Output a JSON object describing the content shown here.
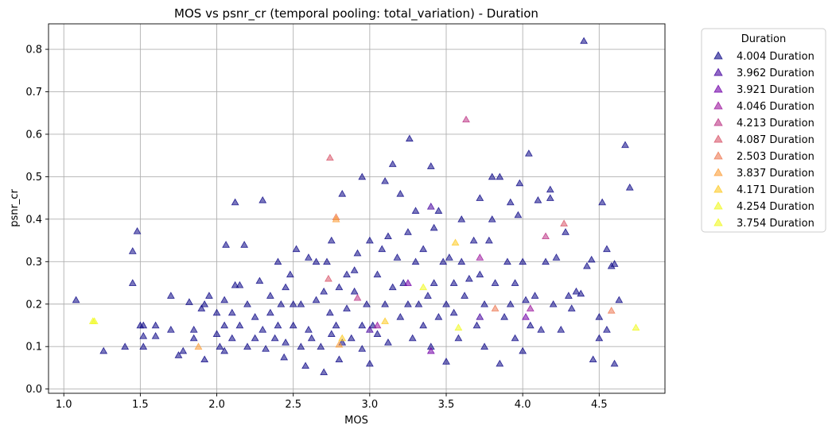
{
  "chart_data": {
    "type": "scatter",
    "title": "MOS vs psnr_cr (temporal pooling: total_variation) - Duration",
    "xlabel": "MOS",
    "ylabel": "psnr_cr",
    "xlim": [
      0.9,
      4.93
    ],
    "ylim": [
      -0.01,
      0.86
    ],
    "xticks": [
      1.0,
      1.5,
      2.0,
      2.5,
      3.0,
      3.5,
      4.0,
      4.5
    ],
    "xtick_labels": [
      "1.0",
      "1.5",
      "2.0",
      "2.5",
      "3.0",
      "3.5",
      "4.0",
      "4.5"
    ],
    "yticks": [
      0.0,
      0.1,
      0.2,
      0.3,
      0.4,
      0.5,
      0.6,
      0.7,
      0.8
    ],
    "ytick_labels": [
      "0.0",
      "0.1",
      "0.2",
      "0.3",
      "0.4",
      "0.5",
      "0.6",
      "0.7",
      "0.8"
    ],
    "grid": true,
    "marker": "triangle",
    "legend": {
      "title": "Duration",
      "placement": "outside-right"
    },
    "series": [
      {
        "name": "4.004 Duration",
        "color": "#0d0887",
        "points": [
          [
            1.08,
            0.21
          ],
          [
            1.26,
            0.09
          ],
          [
            1.4,
            0.1
          ],
          [
            1.45,
            0.325
          ],
          [
            1.45,
            0.25
          ],
          [
            1.48,
            0.372
          ],
          [
            1.5,
            0.15
          ],
          [
            1.52,
            0.15
          ],
          [
            1.52,
            0.125
          ],
          [
            1.52,
            0.1
          ],
          [
            1.6,
            0.15
          ],
          [
            1.6,
            0.125
          ],
          [
            1.7,
            0.14
          ],
          [
            1.7,
            0.22
          ],
          [
            1.75,
            0.08
          ],
          [
            1.78,
            0.09
          ],
          [
            1.82,
            0.205
          ],
          [
            1.85,
            0.12
          ],
          [
            1.85,
            0.14
          ],
          [
            1.9,
            0.19
          ],
          [
            1.92,
            0.07
          ],
          [
            1.92,
            0.2
          ],
          [
            1.95,
            0.22
          ],
          [
            2.0,
            0.13
          ],
          [
            2.0,
            0.18
          ],
          [
            2.02,
            0.1
          ],
          [
            2.05,
            0.09
          ],
          [
            2.05,
            0.15
          ],
          [
            2.05,
            0.21
          ],
          [
            2.06,
            0.34
          ],
          [
            2.1,
            0.12
          ],
          [
            2.1,
            0.18
          ],
          [
            2.12,
            0.245
          ],
          [
            2.12,
            0.44
          ],
          [
            2.15,
            0.15
          ],
          [
            2.15,
            0.245
          ],
          [
            2.18,
            0.34
          ],
          [
            2.2,
            0.1
          ],
          [
            2.2,
            0.2
          ],
          [
            2.25,
            0.12
          ],
          [
            2.25,
            0.17
          ],
          [
            2.28,
            0.255
          ],
          [
            2.3,
            0.445
          ],
          [
            2.3,
            0.14
          ],
          [
            2.32,
            0.095
          ],
          [
            2.35,
            0.22
          ],
          [
            2.35,
            0.18
          ],
          [
            2.38,
            0.12
          ],
          [
            2.4,
            0.3
          ],
          [
            2.4,
            0.15
          ],
          [
            2.42,
            0.2
          ],
          [
            2.44,
            0.075
          ],
          [
            2.45,
            0.24
          ],
          [
            2.45,
            0.11
          ],
          [
            2.48,
            0.27
          ],
          [
            2.5,
            0.15
          ],
          [
            2.5,
            0.2
          ],
          [
            2.52,
            0.33
          ],
          [
            2.55,
            0.1
          ],
          [
            2.55,
            0.2
          ],
          [
            2.58,
            0.055
          ],
          [
            2.6,
            0.31
          ],
          [
            2.6,
            0.14
          ],
          [
            2.62,
            0.12
          ],
          [
            2.65,
            0.3
          ],
          [
            2.65,
            0.21
          ],
          [
            2.68,
            0.1
          ],
          [
            2.7,
            0.04
          ],
          [
            2.7,
            0.23
          ],
          [
            2.72,
            0.3
          ],
          [
            2.74,
            0.18
          ],
          [
            2.75,
            0.13
          ],
          [
            2.75,
            0.35
          ],
          [
            2.78,
            0.15
          ],
          [
            2.8,
            0.24
          ],
          [
            2.8,
            0.07
          ],
          [
            2.82,
            0.46
          ],
          [
            2.82,
            0.11
          ],
          [
            2.85,
            0.27
          ],
          [
            2.85,
            0.19
          ],
          [
            2.88,
            0.12
          ],
          [
            2.9,
            0.28
          ],
          [
            2.9,
            0.23
          ],
          [
            2.92,
            0.32
          ],
          [
            2.95,
            0.5
          ],
          [
            2.95,
            0.15
          ],
          [
            2.95,
            0.095
          ],
          [
            2.98,
            0.2
          ],
          [
            3.0,
            0.35
          ],
          [
            3.0,
            0.06
          ],
          [
            3.02,
            0.15
          ],
          [
            3.05,
            0.27
          ],
          [
            3.05,
            0.13
          ],
          [
            3.08,
            0.33
          ],
          [
            3.1,
            0.2
          ],
          [
            3.1,
            0.49
          ],
          [
            3.12,
            0.36
          ],
          [
            3.12,
            0.11
          ],
          [
            3.15,
            0.53
          ],
          [
            3.15,
            0.24
          ],
          [
            3.18,
            0.31
          ],
          [
            3.2,
            0.46
          ],
          [
            3.2,
            0.17
          ],
          [
            3.22,
            0.25
          ],
          [
            3.25,
            0.37
          ],
          [
            3.25,
            0.2
          ],
          [
            3.26,
            0.59
          ],
          [
            3.28,
            0.12
          ],
          [
            3.3,
            0.42
          ],
          [
            3.3,
            0.3
          ],
          [
            3.32,
            0.2
          ],
          [
            3.35,
            0.33
          ],
          [
            3.35,
            0.15
          ],
          [
            3.38,
            0.22
          ],
          [
            3.4,
            0.525
          ],
          [
            3.4,
            0.1
          ],
          [
            3.42,
            0.38
          ],
          [
            3.42,
            0.25
          ],
          [
            3.45,
            0.17
          ],
          [
            3.45,
            0.42
          ],
          [
            3.48,
            0.3
          ],
          [
            3.5,
            0.2
          ],
          [
            3.5,
            0.065
          ],
          [
            3.52,
            0.31
          ],
          [
            3.55,
            0.18
          ],
          [
            3.55,
            0.25
          ],
          [
            3.58,
            0.12
          ],
          [
            3.6,
            0.4
          ],
          [
            3.6,
            0.3
          ],
          [
            3.62,
            0.22
          ],
          [
            3.65,
            0.26
          ],
          [
            3.68,
            0.35
          ],
          [
            3.7,
            0.15
          ],
          [
            3.72,
            0.27
          ],
          [
            3.72,
            0.45
          ],
          [
            3.75,
            0.1
          ],
          [
            3.75,
            0.2
          ],
          [
            3.78,
            0.35
          ],
          [
            3.8,
            0.5
          ],
          [
            3.8,
            0.4
          ],
          [
            3.82,
            0.25
          ],
          [
            3.85,
            0.06
          ],
          [
            3.85,
            0.5
          ],
          [
            3.88,
            0.17
          ],
          [
            3.9,
            0.3
          ],
          [
            3.92,
            0.44
          ],
          [
            3.92,
            0.2
          ],
          [
            3.95,
            0.12
          ],
          [
            3.95,
            0.25
          ],
          [
            3.97,
            0.41
          ],
          [
            3.98,
            0.485
          ],
          [
            4.0,
            0.09
          ],
          [
            4.0,
            0.3
          ],
          [
            4.02,
            0.21
          ],
          [
            4.04,
            0.555
          ],
          [
            4.05,
            0.15
          ],
          [
            4.08,
            0.22
          ],
          [
            4.1,
            0.445
          ],
          [
            4.12,
            0.14
          ],
          [
            4.15,
            0.3
          ],
          [
            4.18,
            0.47
          ],
          [
            4.18,
            0.45
          ],
          [
            4.2,
            0.2
          ],
          [
            4.22,
            0.31
          ],
          [
            4.25,
            0.14
          ],
          [
            4.28,
            0.37
          ],
          [
            4.3,
            0.22
          ],
          [
            4.32,
            0.19
          ],
          [
            4.35,
            0.23
          ],
          [
            4.38,
            0.225
          ],
          [
            4.4,
            0.82
          ],
          [
            4.42,
            0.29
          ],
          [
            4.45,
            0.305
          ],
          [
            4.46,
            0.07
          ],
          [
            4.5,
            0.17
          ],
          [
            4.5,
            0.12
          ],
          [
            4.52,
            0.44
          ],
          [
            4.55,
            0.33
          ],
          [
            4.55,
            0.14
          ],
          [
            4.58,
            0.29
          ],
          [
            4.6,
            0.06
          ],
          [
            4.6,
            0.295
          ],
          [
            4.63,
            0.21
          ],
          [
            4.67,
            0.575
          ],
          [
            4.7,
            0.475
          ]
        ]
      },
      {
        "name": "3.962 Duration",
        "color": "#46039f",
        "points": [
          [
            3.0,
            0.14
          ],
          [
            3.4,
            0.43
          ],
          [
            3.72,
            0.17
          ]
        ]
      },
      {
        "name": "3.921 Duration",
        "color": "#7201a8",
        "points": [
          [
            3.4,
            0.09
          ],
          [
            3.25,
            0.25
          ],
          [
            4.02,
            0.17
          ]
        ]
      },
      {
        "name": "4.046 Duration",
        "color": "#9c179e",
        "points": [
          [
            3.05,
            0.15
          ],
          [
            3.72,
            0.31
          ],
          [
            4.05,
            0.19
          ]
        ]
      },
      {
        "name": "4.213 Duration",
        "color": "#bd3786",
        "points": [
          [
            2.92,
            0.215
          ],
          [
            3.63,
            0.635
          ],
          [
            4.15,
            0.36
          ]
        ]
      },
      {
        "name": "4.087 Duration",
        "color": "#d8576b",
        "points": [
          [
            2.74,
            0.545
          ],
          [
            2.73,
            0.26
          ],
          [
            4.27,
            0.39
          ]
        ]
      },
      {
        "name": "2.503 Duration",
        "color": "#ed7953",
        "points": [
          [
            2.78,
            0.405
          ],
          [
            3.82,
            0.19
          ],
          [
            4.58,
            0.185
          ]
        ]
      },
      {
        "name": "3.837 Duration",
        "color": "#fb9f3a",
        "points": [
          [
            2.78,
            0.4
          ],
          [
            2.8,
            0.105
          ],
          [
            1.88,
            0.1
          ]
        ]
      },
      {
        "name": "4.171 Duration",
        "color": "#fdca26",
        "points": [
          [
            3.56,
            0.345
          ],
          [
            2.82,
            0.12
          ],
          [
            3.1,
            0.16
          ]
        ]
      },
      {
        "name": "4.254 Duration",
        "color": "#f0f921",
        "points": [
          [
            1.19,
            0.16
          ],
          [
            3.58,
            0.145
          ],
          [
            3.35,
            0.24
          ]
        ]
      },
      {
        "name": "3.754 Duration",
        "color": "#f0f921",
        "points": [
          [
            4.74,
            0.145
          ],
          [
            1.2,
            0.16
          ]
        ]
      }
    ]
  }
}
